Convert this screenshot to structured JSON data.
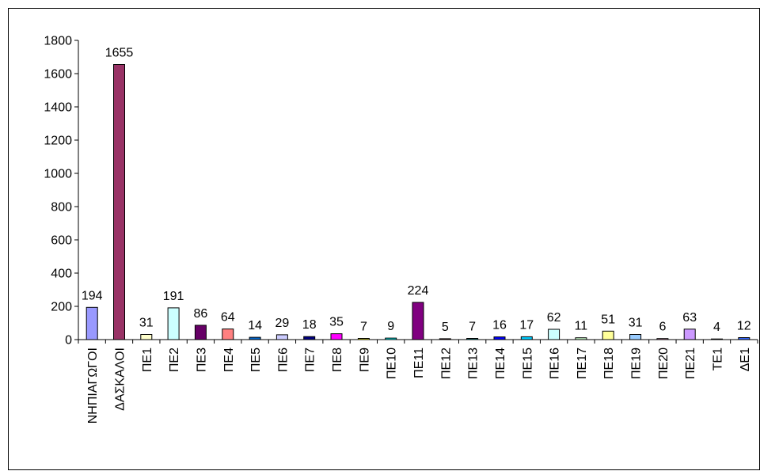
{
  "chart_data": {
    "type": "bar",
    "categories": [
      "ΝΗΠΙΑΓΩΓΟΙ",
      "ΔΑΣΚΑΛΟΙ",
      "ΠΕ1",
      "ΠΕ2",
      "ΠΕ3",
      "ΠΕ4",
      "ΠΕ5",
      "ΠΕ6",
      "ΠΕ7",
      "ΠΕ8",
      "ΠΕ9",
      "ΠΕ10",
      "ΠΕ11",
      "ΠΕ12",
      "ΠΕ13",
      "ΠΕ14",
      "ΠΕ15",
      "ΠΕ16",
      "ΠΕ17",
      "ΠΕ18",
      "ΠΕ19",
      "ΠΕ20",
      "ΠΕ21",
      "ΤΕ1",
      "ΔΕ1"
    ],
    "values": [
      194,
      1655,
      31,
      191,
      86,
      64,
      14,
      29,
      18,
      35,
      7,
      9,
      224,
      5,
      7,
      16,
      17,
      62,
      11,
      51,
      31,
      6,
      63,
      4,
      12
    ],
    "colors": [
      "#9999ff",
      "#993366",
      "#ffffcc",
      "#ccffff",
      "#660066",
      "#ff8080",
      "#0066cc",
      "#ccccff",
      "#000080",
      "#ff00ff",
      "#ffff00",
      "#00ffff",
      "#800080",
      "#800000",
      "#008080",
      "#0000ff",
      "#00ccff",
      "#ccffff",
      "#ccffcc",
      "#ffff99",
      "#99ccff",
      "#ff99cc",
      "#cc99ff",
      "#ffcc99",
      "#3366ff"
    ],
    "ylim": [
      0,
      1800
    ],
    "yticks": [
      0,
      200,
      400,
      600,
      800,
      1000,
      1200,
      1400,
      1600,
      1800
    ],
    "title": "",
    "xlabel": "",
    "ylabel": "",
    "grid": false,
    "legend": "none"
  }
}
